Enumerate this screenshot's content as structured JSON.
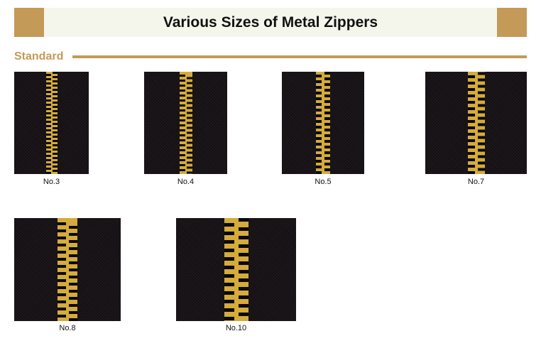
{
  "header": {
    "title": "Various Sizes of Metal Zippers"
  },
  "section": {
    "label": "Standard"
  },
  "colors": {
    "accent": "#c39a58",
    "header_bg": "#f4f6ec",
    "tape": "#140f12",
    "teeth": "#d4ab3c"
  },
  "zippers": [
    {
      "label": "No.3"
    },
    {
      "label": "No.4"
    },
    {
      "label": "No.5"
    },
    {
      "label": "No.7"
    },
    {
      "label": "No.8"
    },
    {
      "label": "No.10"
    }
  ]
}
